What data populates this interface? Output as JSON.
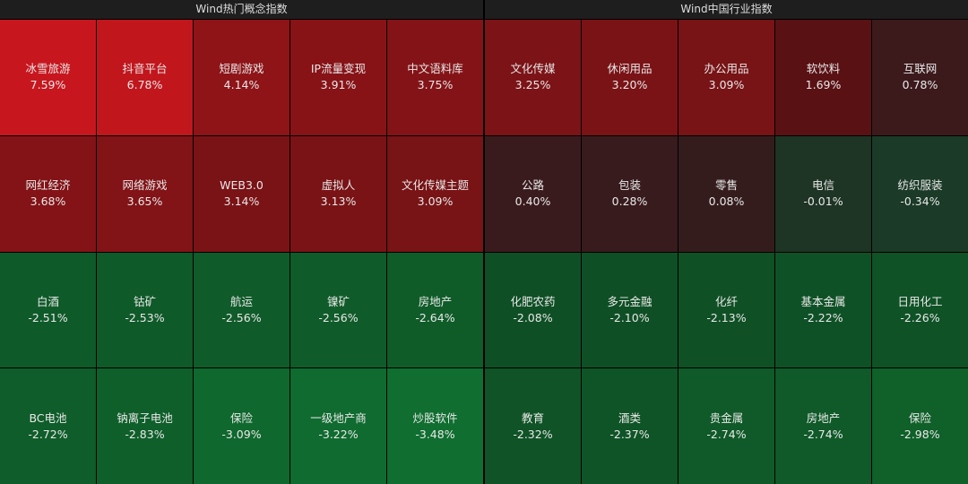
{
  "panels": [
    {
      "title": "Wind热门概念指数",
      "tiles": [
        {
          "name": "冰雪旅游",
          "change": "7.59%",
          "color": "#c8161e"
        },
        {
          "name": "抖音平台",
          "change": "6.78%",
          "color": "#c2161d"
        },
        {
          "name": "短剧游戏",
          "change": "4.14%",
          "color": "#8e1418"
        },
        {
          "name": "IP流量变现",
          "change": "3.91%",
          "color": "#871317"
        },
        {
          "name": "中文语料库",
          "change": "3.75%",
          "color": "#841317"
        },
        {
          "name": "网红经济",
          "change": "3.68%",
          "color": "#831317"
        },
        {
          "name": "网络游戏",
          "change": "3.65%",
          "color": "#821317"
        },
        {
          "name": "WEB3.0",
          "change": "3.14%",
          "color": "#7a1316"
        },
        {
          "name": "虚拟人",
          "change": "3.13%",
          "color": "#7a1316"
        },
        {
          "name": "文化传媒主题",
          "change": "3.09%",
          "color": "#781316"
        },
        {
          "name": "白酒",
          "change": "-2.51%",
          "color": "#0f5a29"
        },
        {
          "name": "钴矿",
          "change": "-2.53%",
          "color": "#0f5a29"
        },
        {
          "name": "航运",
          "change": "-2.56%",
          "color": "#0f5b29"
        },
        {
          "name": "镍矿",
          "change": "-2.56%",
          "color": "#0f5b29"
        },
        {
          "name": "房地产",
          "change": "-2.64%",
          "color": "#0f5c29"
        },
        {
          "name": "BC电池",
          "change": "-2.72%",
          "color": "#0f5d2a"
        },
        {
          "name": "钠离子电池",
          "change": "-2.83%",
          "color": "#0f5f2a"
        },
        {
          "name": "保险",
          "change": "-3.09%",
          "color": "#0f682d"
        },
        {
          "name": "一级地产商",
          "change": "-3.22%",
          "color": "#0f6b2f"
        },
        {
          "name": "炒股软件",
          "change": "-3.48%",
          "color": "#0f6e30"
        }
      ]
    },
    {
      "title": "Wind中国行业指数",
      "tiles": [
        {
          "name": "文化传媒",
          "change": "3.25%",
          "color": "#7c1317"
        },
        {
          "name": "休闲用品",
          "change": "3.20%",
          "color": "#7a1316"
        },
        {
          "name": "办公用品",
          "change": "3.09%",
          "color": "#781316"
        },
        {
          "name": "软饮料",
          "change": "1.69%",
          "color": "#5a1114"
        },
        {
          "name": "互联网",
          "change": "0.78%",
          "color": "#3c1a1c"
        },
        {
          "name": "公路",
          "change": "0.40%",
          "color": "#3a1b1d"
        },
        {
          "name": "包装",
          "change": "0.28%",
          "color": "#381b1d"
        },
        {
          "name": "零售",
          "change": "0.08%",
          "color": "#341c1d"
        },
        {
          "name": "电信",
          "change": "-0.01%",
          "color": "#1e3424"
        },
        {
          "name": "纺织服装",
          "change": "-0.34%",
          "color": "#1b3a27"
        },
        {
          "name": "化肥农药",
          "change": "-2.08%",
          "color": "#0f4f25"
        },
        {
          "name": "多元金融",
          "change": "-2.10%",
          "color": "#0f4f25"
        },
        {
          "name": "化纤",
          "change": "-2.13%",
          "color": "#0f5025"
        },
        {
          "name": "基本金属",
          "change": "-2.22%",
          "color": "#0f5126"
        },
        {
          "name": "日用化工",
          "change": "-2.26%",
          "color": "#0f5226"
        },
        {
          "name": "教育",
          "change": "-2.32%",
          "color": "#0f5326"
        },
        {
          "name": "酒类",
          "change": "-2.37%",
          "color": "#0f5426"
        },
        {
          "name": "贵金属",
          "change": "-2.74%",
          "color": "#0f5a28"
        },
        {
          "name": "房地产",
          "change": "-2.74%",
          "color": "#0f5a28"
        },
        {
          "name": "保险",
          "change": "-2.98%",
          "color": "#0f6029"
        }
      ]
    }
  ]
}
